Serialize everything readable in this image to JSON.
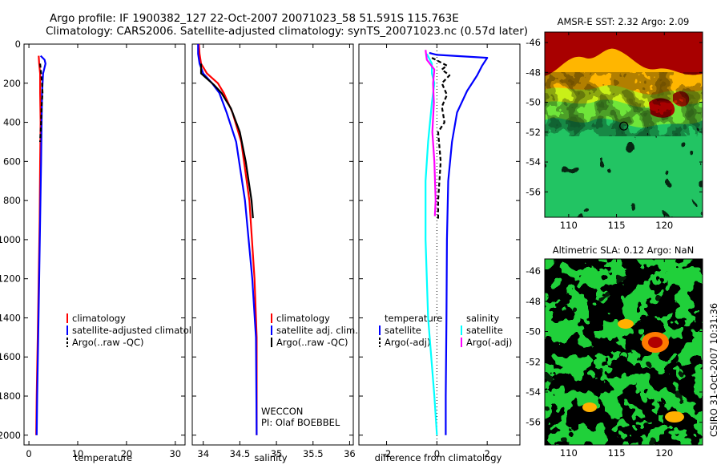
{
  "header": {
    "title1": "Argo profile: IF 1900382_127 22-Oct-2007 20071023_58 51.591S 115.763E",
    "title2": "Climatology: CARS2006. Satellite-adjusted climatology: synTS_20071023.nc (0.57d later)"
  },
  "side_text": "CSIRO 31-Oct-2007 10:31:36",
  "chart_data": [
    {
      "type": "line",
      "xlabel": "temperature",
      "xlim": [
        -1,
        32
      ],
      "xticks": [
        0,
        10,
        20,
        30
      ],
      "ylim": [
        2050,
        0
      ],
      "yticks": [
        0,
        200,
        400,
        600,
        800,
        1000,
        1200,
        1400,
        1600,
        1800,
        2000
      ],
      "legend": [
        "climatology",
        "satellite-adjusted climatology",
        "Argo(..raw -QC)"
      ],
      "series": [
        {
          "name": "climatology",
          "color": "#ff0000",
          "dash": "",
          "points": [
            [
              2.0,
              60
            ],
            [
              2.1,
              100
            ],
            [
              2.3,
              150
            ],
            [
              2.3,
              250
            ],
            [
              2.4,
              400
            ],
            [
              2.3,
              600
            ],
            [
              2.2,
              900
            ],
            [
              2.0,
              1200
            ],
            [
              1.8,
              1500
            ],
            [
              1.6,
              1800
            ],
            [
              1.5,
              2000
            ]
          ]
        },
        {
          "name": "satellite-adjusted climatology",
          "color": "#0000ff",
          "dash": "",
          "points": [
            [
              2.4,
              60
            ],
            [
              3.2,
              80
            ],
            [
              3.4,
              100
            ],
            [
              2.9,
              150
            ],
            [
              2.7,
              250
            ],
            [
              2.6,
              400
            ],
            [
              2.5,
              600
            ],
            [
              2.3,
              900
            ],
            [
              2.1,
              1200
            ],
            [
              1.9,
              1500
            ],
            [
              1.7,
              1800
            ],
            [
              1.6,
              2000
            ]
          ]
        },
        {
          "name": "Argo(..raw -QC)",
          "color": "#000000",
          "dash": "5,3",
          "points": [
            [
              2.3,
              100
            ],
            [
              2.5,
              150
            ],
            [
              2.7,
              200
            ],
            [
              2.8,
              250
            ],
            [
              2.6,
              320
            ],
            [
              2.5,
              400
            ],
            [
              2.3,
              500
            ]
          ]
        }
      ]
    },
    {
      "type": "line",
      "xlabel": "salinity",
      "xlim": [
        33.85,
        36.05
      ],
      "xticks": [
        34,
        34.5,
        35,
        35.5,
        36
      ],
      "ylim": [
        2050,
        0
      ],
      "legend": [
        "climatology",
        "satellite adj. clim.",
        "Argo(..raw -QC)"
      ],
      "annotation1": "WECCON",
      "annotation2": "PI: Olaf BOEBBEL",
      "series": [
        {
          "name": "climatology",
          "color": "#ff0000",
          "dash": "",
          "points": [
            [
              33.94,
              0
            ],
            [
              33.95,
              50
            ],
            [
              33.97,
              100
            ],
            [
              34.05,
              150
            ],
            [
              34.2,
              200
            ],
            [
              34.28,
              250
            ],
            [
              34.4,
              350
            ],
            [
              34.52,
              500
            ],
            [
              34.63,
              800
            ],
            [
              34.7,
              1200
            ],
            [
              34.73,
              1500
            ],
            [
              34.73,
              2000
            ]
          ]
        },
        {
          "name": "satellite adj. clim.",
          "color": "#0000ff",
          "dash": "",
          "points": [
            [
              33.93,
              0
            ],
            [
              33.93,
              50
            ],
            [
              33.95,
              100
            ],
            [
              34.0,
              150
            ],
            [
              34.12,
              200
            ],
            [
              34.22,
              250
            ],
            [
              34.32,
              350
            ],
            [
              34.45,
              500
            ],
            [
              34.57,
              800
            ],
            [
              34.67,
              1200
            ],
            [
              34.72,
              1500
            ],
            [
              34.73,
              2000
            ]
          ]
        },
        {
          "name": "Argo(..raw -QC)",
          "color": "#000000",
          "dash": "",
          "points": [
            [
              33.97,
              100
            ],
            [
              33.97,
              150
            ],
            [
              34.15,
              210
            ],
            [
              34.25,
              250
            ],
            [
              34.38,
              330
            ],
            [
              34.5,
              450
            ],
            [
              34.58,
              600
            ],
            [
              34.66,
              800
            ],
            [
              34.68,
              890
            ]
          ]
        }
      ]
    },
    {
      "type": "line",
      "xlabel": "difference from climatology",
      "xlim": [
        -3.1,
        3.3
      ],
      "xticks": [
        -2,
        0,
        2
      ],
      "ylim": [
        2050,
        0
      ],
      "legend_temperature_title": "temperature",
      "legend_salinity_title": "salinity",
      "legend": [
        "satellite",
        "Argo(-adj)",
        "satellite",
        "Argo(-adj)"
      ],
      "series": [
        {
          "name": "satellite",
          "color": "#0000ff",
          "dash": "",
          "points": [
            [
              -0.3,
              45
            ],
            [
              0.0,
              55
            ],
            [
              2.0,
              70
            ],
            [
              1.8,
              110
            ],
            [
              1.6,
              160
            ],
            [
              1.2,
              240
            ],
            [
              0.8,
              350
            ],
            [
              0.6,
              500
            ],
            [
              0.45,
              700
            ],
            [
              0.4,
              1000
            ],
            [
              0.38,
              1400
            ],
            [
              0.35,
              1800
            ],
            [
              0.35,
              2000
            ]
          ]
        },
        {
          "name": "Argo(-adj)",
          "color": "#000000",
          "dash": "5,3",
          "points": [
            [
              -0.2,
              70
            ],
            [
              0.4,
              110
            ],
            [
              0.2,
              130
            ],
            [
              0.5,
              160
            ],
            [
              0.2,
              200
            ],
            [
              0.4,
              260
            ],
            [
              0.2,
              320
            ],
            [
              0.3,
              400
            ],
            [
              0.05,
              450
            ],
            [
              0.15,
              600
            ],
            [
              0.05,
              800
            ],
            [
              0.05,
              900
            ]
          ]
        },
        {
          "name": "satellite",
          "color": "#00ffff",
          "dash": "",
          "points": [
            [
              -0.4,
              50
            ],
            [
              -0.2,
              100
            ],
            [
              -0.2,
              150
            ],
            [
              -0.1,
              200
            ],
            [
              -0.2,
              300
            ],
            [
              -0.35,
              500
            ],
            [
              -0.45,
              700
            ],
            [
              -0.45,
              1000
            ],
            [
              -0.35,
              1400
            ],
            [
              -0.1,
              1800
            ],
            [
              0.0,
              2000
            ]
          ]
        },
        {
          "name": "Argo(-adj)",
          "color": "#ff00ff",
          "dash": "",
          "points": [
            [
              -0.45,
              30
            ],
            [
              -0.4,
              80
            ],
            [
              -0.1,
              130
            ],
            [
              -0.15,
              200
            ],
            [
              -0.12,
              300
            ],
            [
              -0.18,
              450
            ],
            [
              -0.1,
              600
            ],
            [
              -0.05,
              800
            ],
            [
              -0.08,
              880
            ]
          ]
        }
      ]
    },
    {
      "type": "heatmap",
      "title": "AMSR-E SST: 2.32  Argo: 2.09",
      "xlim": [
        107.5,
        124
      ],
      "ylim": [
        -57.7,
        -45.3
      ],
      "xticks": [
        110,
        115,
        120
      ],
      "yticks": [
        -46,
        -48,
        -50,
        -52,
        -54,
        -56
      ],
      "marker": {
        "lon": 115.763,
        "lat": -51.591
      }
    },
    {
      "type": "heatmap",
      "title": "Altimetric SLA: 0.12  Argo: NaN",
      "xlim": [
        107.5,
        124
      ],
      "ylim": [
        -57.5,
        -45.2
      ],
      "xticks": [
        110,
        115,
        120
      ],
      "yticks": [
        -46,
        -48,
        -50,
        -52,
        -54,
        -56
      ],
      "marker": {
        "lon": 115.763,
        "lat": -51.591
      }
    }
  ]
}
